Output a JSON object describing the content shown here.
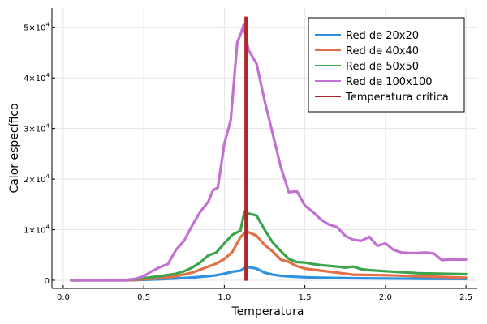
{
  "chart_data": {
    "type": "line",
    "title": "",
    "xlabel": "Temperatura",
    "ylabel": "Calor específico",
    "xlim": [
      0.0,
      2.5
    ],
    "ylim": [
      0,
      52000
    ],
    "xticks": [
      0.0,
      0.5,
      1.0,
      1.5,
      2.0,
      2.5
    ],
    "xtick_labels": [
      "0.0",
      "0.5",
      "1.0",
      "1.5",
      "2.0",
      "2.5"
    ],
    "yticks": [
      {
        "value": 0,
        "mantissa": "0",
        "exp": ""
      },
      {
        "value": 10000,
        "mantissa": "1×10",
        "exp": "4"
      },
      {
        "value": 20000,
        "mantissa": "2×10",
        "exp": "4"
      },
      {
        "value": 30000,
        "mantissa": "3×10",
        "exp": "4"
      },
      {
        "value": 40000,
        "mantissa": "4×10",
        "exp": "4"
      },
      {
        "value": 50000,
        "mantissa": "5×10",
        "exp": "4"
      }
    ],
    "grid": true,
    "legend_position": "top-right",
    "series": [
      {
        "name": "Red de 20x20",
        "color": "#2e91e0",
        "x": [
          0.05,
          0.3,
          0.4,
          0.5,
          0.6,
          0.7,
          0.8,
          0.9,
          0.95,
          1.0,
          1.05,
          1.1,
          1.125,
          1.15,
          1.2,
          1.25,
          1.3,
          1.35,
          1.4,
          1.5,
          1.6,
          1.8,
          2.0,
          2.2,
          2.5
        ],
        "y": [
          0,
          0,
          0,
          100,
          200,
          350,
          550,
          800,
          1000,
          1300,
          1700,
          1900,
          2400,
          2600,
          2300,
          1500,
          1100,
          900,
          750,
          600,
          500,
          400,
          350,
          300,
          250
        ]
      },
      {
        "name": "Red de 40x40",
        "color": "#e26f46",
        "x": [
          0.05,
          0.4,
          0.5,
          0.6,
          0.7,
          0.8,
          0.9,
          0.95,
          1.0,
          1.05,
          1.1,
          1.125,
          1.15,
          1.2,
          1.25,
          1.3,
          1.35,
          1.4,
          1.45,
          1.5,
          1.6,
          1.7,
          1.8,
          2.0,
          2.2,
          2.5
        ],
        "y": [
          0,
          0,
          200,
          400,
          800,
          1500,
          2700,
          3300,
          4200,
          5600,
          8500,
          9300,
          9500,
          8800,
          7000,
          5700,
          4100,
          3600,
          2800,
          2300,
          1900,
          1500,
          1100,
          1000,
          800,
          500
        ]
      },
      {
        "name": "Red de 50x50",
        "color": "#3da44d",
        "x": [
          0.05,
          0.4,
          0.5,
          0.6,
          0.7,
          0.75,
          0.8,
          0.85,
          0.9,
          0.95,
          1.0,
          1.05,
          1.1,
          1.125,
          1.15,
          1.2,
          1.25,
          1.3,
          1.35,
          1.4,
          1.45,
          1.5,
          1.55,
          1.6,
          1.7,
          1.75,
          1.8,
          1.85,
          1.9,
          2.0,
          2.1,
          2.2,
          2.5
        ],
        "y": [
          0,
          100,
          400,
          800,
          1300,
          1800,
          2500,
          3500,
          4900,
          5500,
          7300,
          9000,
          9800,
          13600,
          13200,
          12800,
          10000,
          7500,
          5800,
          4200,
          3600,
          3500,
          3200,
          3000,
          2700,
          2500,
          2700,
          2200,
          2000,
          1800,
          1600,
          1400,
          1200
        ]
      },
      {
        "name": "Red de 100x100",
        "color": "#c271d2",
        "x": [
          0.05,
          0.38,
          0.45,
          0.5,
          0.55,
          0.6,
          0.65,
          0.7,
          0.75,
          0.8,
          0.85,
          0.9,
          0.93,
          0.96,
          1.0,
          1.04,
          1.08,
          1.1,
          1.12,
          1.15,
          1.2,
          1.25,
          1.3,
          1.35,
          1.4,
          1.45,
          1.5,
          1.55,
          1.6,
          1.65,
          1.7,
          1.75,
          1.8,
          1.85,
          1.9,
          1.95,
          2.0,
          2.05,
          2.1,
          2.15,
          2.2,
          2.25,
          2.3,
          2.35,
          2.4,
          2.45,
          2.5
        ],
        "y": [
          0,
          0,
          300,
          800,
          1800,
          2600,
          3200,
          6000,
          7800,
          10800,
          13500,
          15500,
          17800,
          18300,
          27000,
          31700,
          47000,
          48500,
          50500,
          45500,
          42800,
          35500,
          29000,
          22500,
          17400,
          17600,
          14800,
          13500,
          12000,
          11000,
          10500,
          8800,
          8000,
          7800,
          8600,
          6800,
          7300,
          6000,
          5500,
          5400,
          5400,
          5500,
          5300,
          4000,
          4100,
          4100,
          4100
        ]
      },
      {
        "name": "Temperatura crítica",
        "color": "#b0272b",
        "type": "vline",
        "x": 1.1346
      }
    ]
  }
}
